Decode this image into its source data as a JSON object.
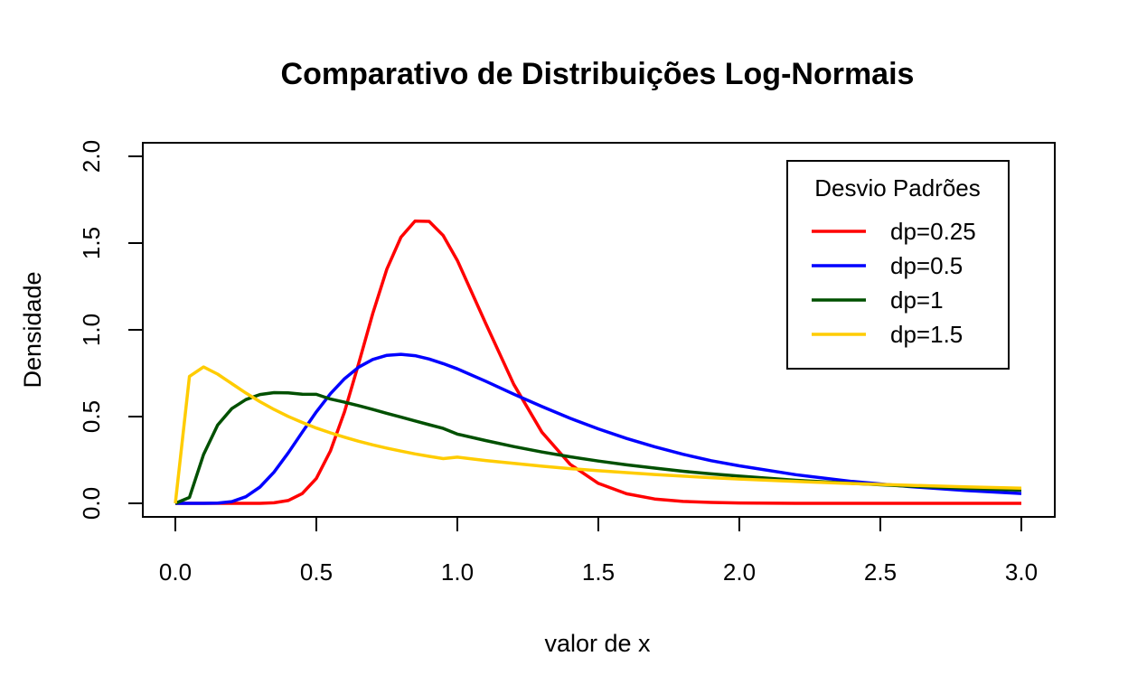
{
  "chart_data": {
    "type": "line",
    "title": "Comparativo de Distribuições Log-Normais",
    "xlabel": "valor de x",
    "ylabel": "Densidade",
    "xlim": [
      0,
      3
    ],
    "ylim": [
      0,
      2
    ],
    "x_ticks": [
      "0.0",
      "0.5",
      "1.0",
      "1.5",
      "2.0",
      "2.5",
      "3.0"
    ],
    "y_ticks": [
      "0.0",
      "0.5",
      "1.0",
      "1.5",
      "2.0"
    ],
    "grid": false,
    "legend": {
      "title": "Desvio Padrões",
      "position": "top-right"
    },
    "x": [
      0.0,
      0.05,
      0.1,
      0.15,
      0.2,
      0.25,
      0.3,
      0.35,
      0.4,
      0.45,
      0.5,
      0.55,
      0.6,
      0.65,
      0.7,
      0.75,
      0.8,
      0.85,
      0.9,
      0.95,
      1.0,
      1.1,
      1.2,
      1.3,
      1.4,
      1.5,
      1.6,
      1.7,
      1.8,
      1.9,
      2.0,
      2.2,
      2.4,
      2.6,
      2.8,
      3.0
    ],
    "series": [
      {
        "name": "dp=0.25",
        "color": "#ff0000",
        "values": [
          0.0,
          0.0,
          0.0,
          0.0,
          0.0,
          0.0,
          0.0,
          0.003,
          0.016,
          0.056,
          0.144,
          0.302,
          0.528,
          0.805,
          1.094,
          1.35,
          1.534,
          1.627,
          1.625,
          1.543,
          1.4,
          1.039,
          0.686,
          0.41,
          0.225,
          0.115,
          0.055,
          0.025,
          0.011,
          0.005,
          0.002,
          0.0,
          0.0,
          0.0,
          0.0,
          0.0
        ]
      },
      {
        "name": "dp=0.5",
        "color": "#0000ff",
        "values": [
          0.0,
          0.0,
          0.0,
          0.001,
          0.01,
          0.038,
          0.094,
          0.18,
          0.29,
          0.41,
          0.527,
          0.632,
          0.718,
          0.785,
          0.829,
          0.853,
          0.859,
          0.851,
          0.832,
          0.805,
          0.775,
          0.704,
          0.629,
          0.558,
          0.49,
          0.429,
          0.374,
          0.326,
          0.283,
          0.246,
          0.216,
          0.165,
          0.126,
          0.097,
          0.074,
          0.057
        ]
      },
      {
        "name": "dp=1",
        "color": "#005000",
        "values": [
          0.0,
          0.034,
          0.281,
          0.451,
          0.546,
          0.598,
          0.627,
          0.638,
          0.637,
          0.629,
          0.628,
          0.601,
          0.583,
          0.563,
          0.541,
          0.519,
          0.497,
          0.475,
          0.453,
          0.432,
          0.399,
          0.362,
          0.327,
          0.296,
          0.268,
          0.244,
          0.222,
          0.203,
          0.185,
          0.17,
          0.157,
          0.133,
          0.115,
          0.099,
          0.087,
          0.076
        ]
      },
      {
        "name": "dp=1.5",
        "color": "#ffcc00",
        "values": [
          0.0,
          0.731,
          0.786,
          0.745,
          0.69,
          0.636,
          0.586,
          0.541,
          0.501,
          0.466,
          0.434,
          0.406,
          0.381,
          0.358,
          0.337,
          0.318,
          0.301,
          0.285,
          0.271,
          0.258,
          0.266,
          0.247,
          0.23,
          0.214,
          0.2,
          0.188,
          0.177,
          0.166,
          0.157,
          0.148,
          0.14,
          0.126,
          0.114,
          0.104,
          0.095,
          0.087
        ]
      }
    ]
  }
}
